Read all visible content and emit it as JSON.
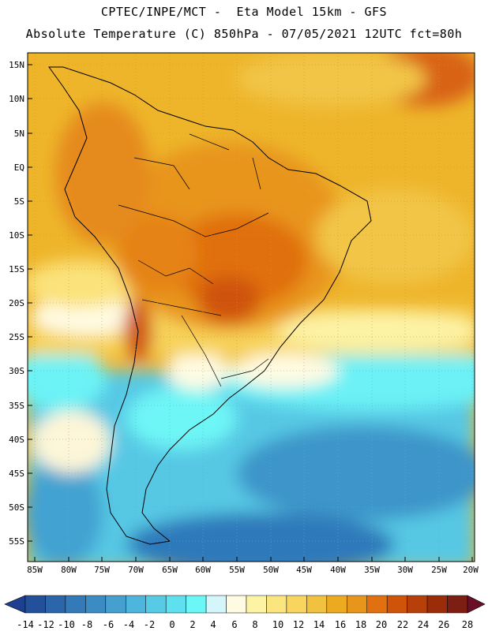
{
  "header": {
    "line1": "CPTEC/INPE/MCT -  Eta Model 15km - GFS",
    "line2": "Absolute Temperature (C) 850hPa - 07/05/2021 12UTC fct=80h"
  },
  "map": {
    "lat_labels": [
      "15N",
      "10N",
      "5N",
      "EQ",
      "5S",
      "10S",
      "15S",
      "20S",
      "25S",
      "30S",
      "35S",
      "40S",
      "45S",
      "50S",
      "55S"
    ],
    "lon_labels": [
      "85W",
      "80W",
      "75W",
      "70W",
      "65W",
      "60W",
      "55W",
      "50W",
      "45W",
      "40W",
      "35W",
      "30W",
      "25W",
      "20W"
    ]
  },
  "colorbar": {
    "ticks": [
      "-14",
      "-12",
      "-10",
      "-8",
      "-6",
      "-4",
      "-2",
      "0",
      "2",
      "4",
      "6",
      "8",
      "10",
      "12",
      "14",
      "16",
      "18",
      "20",
      "22",
      "24",
      "26",
      "28"
    ],
    "colors": [
      "#1f3f8f",
      "#23509b",
      "#2b66ab",
      "#3479b8",
      "#3c8cc4",
      "#45a0d0",
      "#4eb5dc",
      "#57cbe6",
      "#5fe0ee",
      "#6cf7f7",
      "#d4f6fb",
      "#fffbe3",
      "#fdf3a5",
      "#fbe57f",
      "#f7d55e",
      "#f1c23f",
      "#ecaa20",
      "#e8951c",
      "#e07010",
      "#cf5308",
      "#b7400a",
      "#9a2c0a",
      "#7c1f12",
      "#6a0f26"
    ]
  }
}
